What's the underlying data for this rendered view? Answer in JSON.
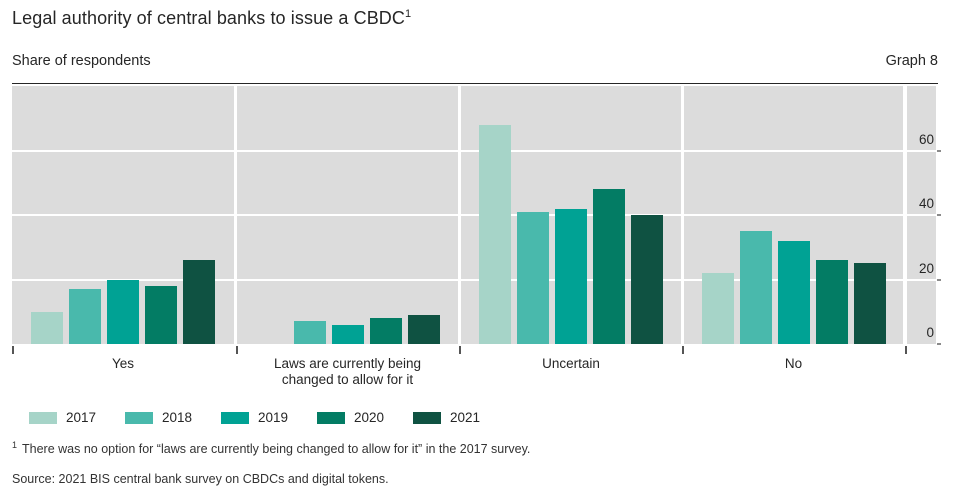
{
  "header": {
    "title": "Legal authority of central banks to issue a CBDC",
    "title_footnote_marker": "1",
    "subtitle": "Share of respondents",
    "graph_label": "Graph 8"
  },
  "chart_data": {
    "type": "bar",
    "categories": [
      "Yes",
      "Laws are currently being changed to allow for it",
      "Uncertain",
      "No"
    ],
    "category_lines": [
      [
        "Yes"
      ],
      [
        "Laws are currently being",
        "changed to allow for it"
      ],
      [
        "Uncertain"
      ],
      [
        "No"
      ]
    ],
    "series": [
      {
        "name": "2017",
        "color": "#a6d4c8",
        "values": [
          10,
          null,
          68,
          22
        ]
      },
      {
        "name": "2018",
        "color": "#49b9ac",
        "values": [
          17,
          7,
          41,
          35
        ]
      },
      {
        "name": "2019",
        "color": "#00a294",
        "values": [
          20,
          6,
          42,
          32
        ]
      },
      {
        "name": "2020",
        "color": "#037c64",
        "values": [
          18,
          8,
          48,
          26
        ]
      },
      {
        "name": "2021",
        "color": "#0f5242",
        "values": [
          26,
          9,
          40,
          25
        ]
      }
    ],
    "xlabel": "",
    "ylabel": "",
    "y_ticks": [
      0,
      20,
      40,
      60
    ],
    "ylim": [
      0,
      80
    ],
    "y_axis_side": "right",
    "grid": "horizontal white lines on grey panels",
    "legend_position": "bottom-left",
    "plot_bg": "#dcdcdc"
  },
  "footnote": {
    "marker": "1",
    "text": "There was no option for “laws are currently being changed to allow for it” in the 2017 survey."
  },
  "source": "Source: 2021 BIS central bank survey on CBDCs and digital tokens."
}
